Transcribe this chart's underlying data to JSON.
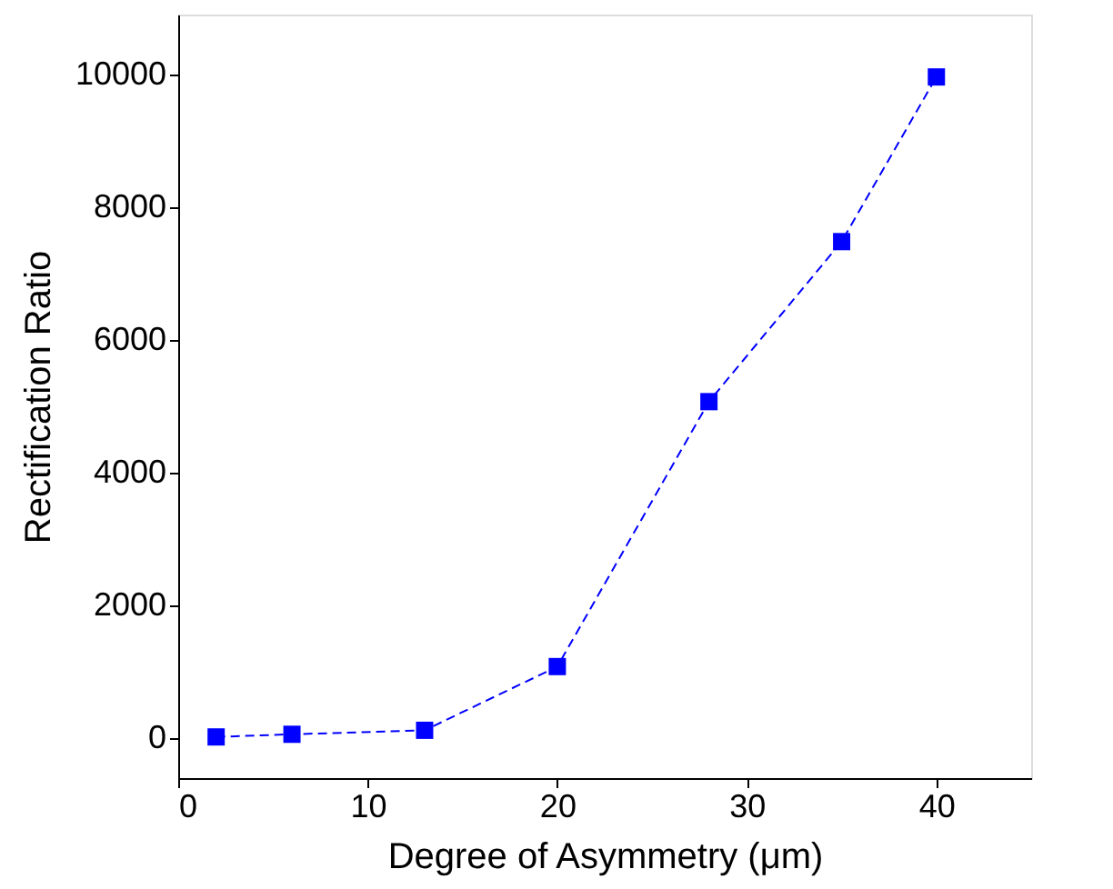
{
  "chart_data": {
    "type": "line",
    "xlabel": "Degree of Asymmetry (μm)",
    "ylabel": "Rectification Ratio",
    "x": [
      2,
      6,
      13,
      20,
      28,
      35,
      40
    ],
    "series": [
      {
        "color": "#0000ff",
        "values": [
          20,
          60,
          120,
          1080,
          5070,
          7480,
          9960
        ]
      }
    ],
    "xlim": [
      0,
      45
    ],
    "xticks": [
      0,
      10,
      20,
      30,
      40
    ],
    "ylim": [
      -600,
      10900
    ],
    "yticks": [
      0,
      2000,
      4000,
      6000,
      8000,
      10000
    ],
    "grid": false,
    "marker": "square",
    "line_style": "dashed"
  }
}
